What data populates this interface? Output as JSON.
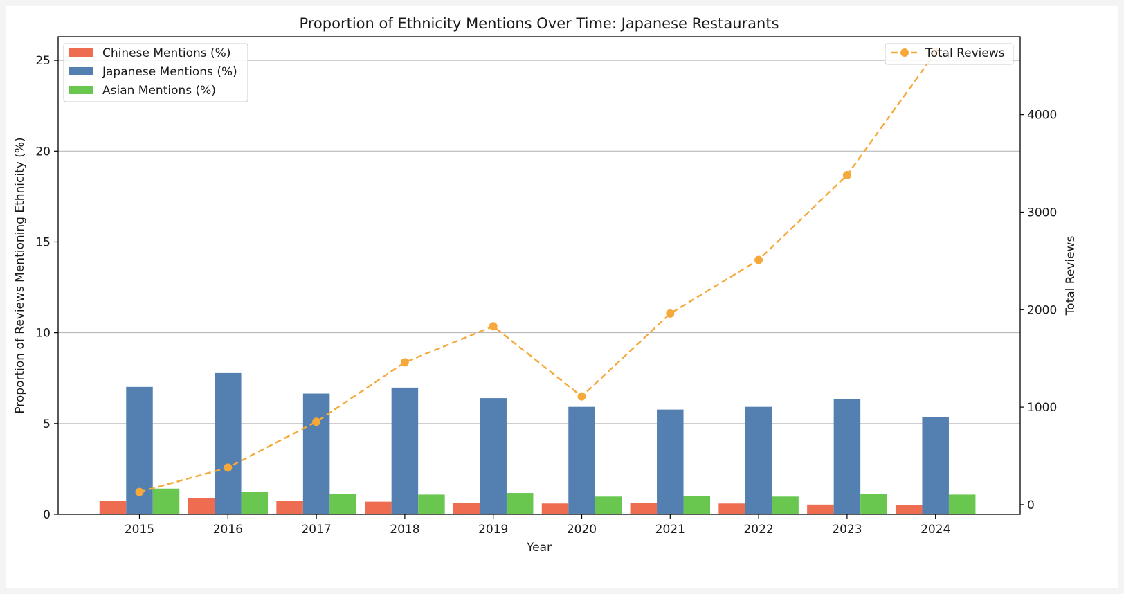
{
  "chart_data": {
    "type": "bar",
    "title": "Proportion of Ethnicity Mentions Over Time: Japanese Restaurants",
    "xlabel": "Year",
    "ylabel": "Proportion of Reviews Mentioning Ethnicity (%)",
    "y2label": "Total Reviews",
    "categories": [
      "2015",
      "2016",
      "2017",
      "2018",
      "2019",
      "2020",
      "2021",
      "2022",
      "2023",
      "2024"
    ],
    "ylim": [
      0,
      26.3
    ],
    "yticks": [
      0,
      5,
      10,
      15,
      20,
      25
    ],
    "y2lim": [
      -100,
      4800
    ],
    "y2ticks": [
      0,
      1000,
      2000,
      3000,
      4000
    ],
    "grid": "horizontal",
    "series": [
      {
        "name": "Chinese Mentions (%)",
        "color": "#ee6c4f",
        "values": [
          0.75,
          0.88,
          0.75,
          0.7,
          0.64,
          0.6,
          0.64,
          0.6,
          0.54,
          0.5
        ]
      },
      {
        "name": "Japanese Mentions (%)",
        "color": "#5380b0",
        "values": [
          7.02,
          7.78,
          6.65,
          6.98,
          6.4,
          5.92,
          5.77,
          5.92,
          6.35,
          5.37
        ]
      },
      {
        "name": "Asian Mentions (%)",
        "color": "#69c74f",
        "values": [
          1.42,
          1.22,
          1.12,
          1.09,
          1.18,
          0.98,
          1.03,
          0.98,
          1.12,
          1.09
        ]
      }
    ],
    "line_series": {
      "name": "Total Reviews",
      "color": "#f5a93a",
      "axis": "right",
      "style": "dashed",
      "marker": "circle",
      "values": [
        130,
        380,
        850,
        1460,
        1830,
        1110,
        1960,
        2510,
        3380,
        4640
      ]
    },
    "legend_bars_position": "upper-left",
    "legend_line_position": "upper-right"
  }
}
